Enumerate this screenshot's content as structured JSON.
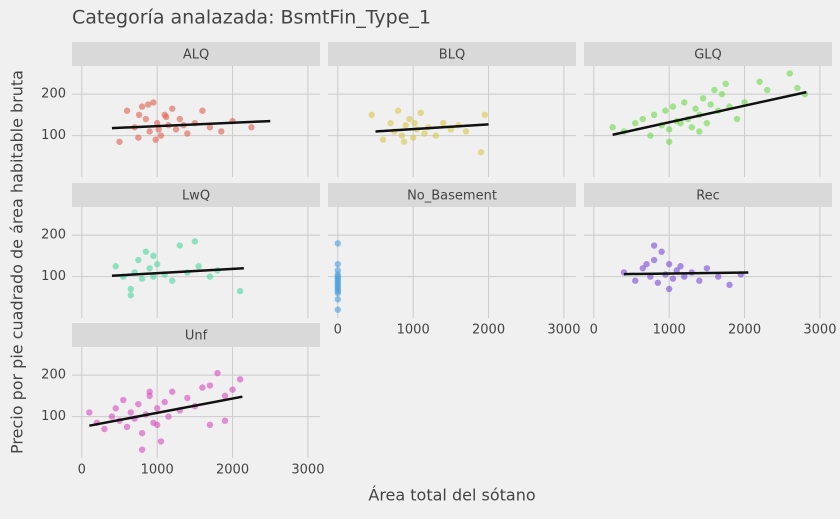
{
  "title": "Categoría analazada: BsmtFin_Type_1",
  "x_label": "Área total del sótano",
  "y_label": "Precio por pie cuadrado de área habitable bruta",
  "chart_data": [
    {
      "type": "scatter",
      "title": "ALQ",
      "color": "#e0604f",
      "x": [
        600,
        700,
        750,
        800,
        850,
        900,
        950,
        1000,
        1050,
        1100,
        1150,
        1200,
        1250,
        1300,
        1400,
        1500,
        1600,
        1700,
        1850,
        2000,
        2250,
        500,
        980,
        1120,
        880,
        1350,
        760,
        1020
      ],
      "values": [
        160,
        120,
        95,
        170,
        140,
        110,
        180,
        130,
        100,
        150,
        125,
        165,
        115,
        140,
        105,
        130,
        160,
        120,
        110,
        135,
        120,
        85,
        90,
        145,
        175,
        125,
        150,
        115
      ],
      "trend": {
        "x": [
          400,
          2500
        ],
        "values": [
          118,
          135
        ]
      },
      "xlim": [
        -130,
        3160
      ],
      "ylim": [
        0,
        268
      ],
      "xticks": [
        0,
        1000,
        2000,
        3000
      ],
      "yticks": [
        100,
        200
      ]
    },
    {
      "type": "scatter",
      "title": "BLQ",
      "color": "#d9c84a",
      "x": [
        450,
        600,
        700,
        750,
        800,
        850,
        900,
        950,
        1000,
        1050,
        1100,
        1150,
        1200,
        1300,
        1400,
        1500,
        1600,
        1700,
        1900,
        1950,
        880,
        1020
      ],
      "values": [
        150,
        90,
        130,
        110,
        160,
        100,
        125,
        140,
        95,
        115,
        155,
        105,
        120,
        100,
        130,
        115,
        125,
        110,
        60,
        150,
        85,
        130
      ],
      "trend": {
        "x": [
          500,
          2000
        ],
        "values": [
          110,
          127
        ]
      },
      "xlim": [
        -130,
        3160
      ],
      "ylim": [
        0,
        268
      ],
      "xticks": [
        0,
        1000,
        2000,
        3000
      ],
      "yticks": [
        100,
        200
      ]
    },
    {
      "type": "scatter",
      "title": "GLQ",
      "color": "#6cd94a",
      "x": [
        250,
        400,
        550,
        650,
        750,
        800,
        900,
        950,
        1000,
        1050,
        1100,
        1150,
        1200,
        1250,
        1300,
        1350,
        1400,
        1450,
        1500,
        1550,
        1600,
        1650,
        1700,
        1800,
        1900,
        2000,
        2200,
        2300,
        2600,
        2700,
        2800,
        1000,
        1400,
        1750
      ],
      "values": [
        120,
        110,
        130,
        140,
        100,
        150,
        125,
        160,
        115,
        170,
        135,
        130,
        180,
        140,
        120,
        165,
        150,
        190,
        130,
        175,
        210,
        160,
        200,
        170,
        140,
        180,
        230,
        210,
        250,
        215,
        200,
        85,
        110,
        225
      ],
      "trend": {
        "x": [
          250,
          2820
        ],
        "values": [
          102,
          205
        ]
      },
      "xlim": [
        -130,
        3160
      ],
      "ylim": [
        0,
        268
      ],
      "xticks": [
        0,
        1000,
        2000,
        3000
      ],
      "yticks": [
        100,
        200
      ]
    },
    {
      "type": "scatter",
      "title": "LwQ",
      "color": "#4ad9a0",
      "x": [
        450,
        550,
        650,
        700,
        750,
        800,
        850,
        900,
        950,
        1000,
        1100,
        1200,
        1300,
        1400,
        1500,
        1550,
        1700,
        1800,
        2100,
        650,
        950
      ],
      "values": [
        125,
        100,
        70,
        110,
        140,
        95,
        160,
        120,
        100,
        130,
        105,
        90,
        175,
        110,
        185,
        125,
        100,
        115,
        65,
        55,
        150
      ],
      "trend": {
        "x": [
          400,
          2150
        ],
        "values": [
          102,
          120
        ]
      },
      "xlim": [
        -130,
        3160
      ],
      "ylim": [
        0,
        268
      ],
      "xticks": [
        0,
        1000,
        2000,
        3000
      ],
      "yticks": [
        100,
        200
      ]
    },
    {
      "type": "scatter",
      "title": "No_Basement",
      "color": "#4a9fe0",
      "x": [
        0,
        0,
        0,
        0,
        0,
        0,
        0,
        0,
        0,
        0,
        0,
        0,
        0,
        0,
        0
      ],
      "values": [
        20,
        45,
        60,
        65,
        70,
        75,
        80,
        85,
        90,
        95,
        100,
        105,
        115,
        130,
        180
      ],
      "xlim": [
        -130,
        3160
      ],
      "ylim": [
        0,
        268
      ],
      "xticks": [
        0,
        1000,
        2000,
        3000
      ],
      "yticks": [
        100,
        200
      ]
    },
    {
      "type": "scatter",
      "title": "Rec",
      "color": "#7a4ad9",
      "x": [
        400,
        550,
        650,
        750,
        800,
        850,
        900,
        950,
        1000,
        1050,
        1100,
        1150,
        1200,
        1300,
        1400,
        1500,
        1650,
        1800,
        1950,
        800,
        1000,
        700
      ],
      "values": [
        110,
        90,
        120,
        100,
        140,
        85,
        160,
        105,
        130,
        95,
        115,
        125,
        100,
        110,
        90,
        120,
        100,
        80,
        105,
        175,
        70,
        130
      ],
      "trend": {
        "x": [
          400,
          2050
        ],
        "values": [
          106,
          110
        ]
      },
      "xlim": [
        -130,
        3160
      ],
      "ylim": [
        0,
        268
      ],
      "xticks": [
        0,
        1000,
        2000,
        3000
      ],
      "yticks": [
        100,
        200
      ]
    },
    {
      "type": "scatter",
      "title": "Unf",
      "color": "#d94ac0",
      "x": [
        100,
        200,
        300,
        400,
        450,
        500,
        550,
        600,
        650,
        700,
        750,
        800,
        850,
        900,
        950,
        1000,
        1050,
        1100,
        1150,
        1200,
        1300,
        1400,
        1500,
        1600,
        1700,
        1800,
        1900,
        2000,
        2100,
        800,
        900,
        1000,
        1700,
        1900
      ],
      "values": [
        110,
        85,
        70,
        100,
        120,
        90,
        140,
        75,
        110,
        95,
        130,
        60,
        105,
        150,
        85,
        120,
        40,
        135,
        100,
        160,
        115,
        145,
        125,
        170,
        175,
        205,
        90,
        165,
        190,
        20,
        160,
        80,
        80,
        150
      ],
      "trend": {
        "x": [
          100,
          2130
        ],
        "values": [
          78,
          148
        ]
      },
      "xlim": [
        -130,
        3160
      ],
      "ylim": [
        0,
        268
      ],
      "xticks": [
        0,
        1000,
        2000,
        3000
      ],
      "yticks": [
        100,
        200
      ]
    }
  ]
}
